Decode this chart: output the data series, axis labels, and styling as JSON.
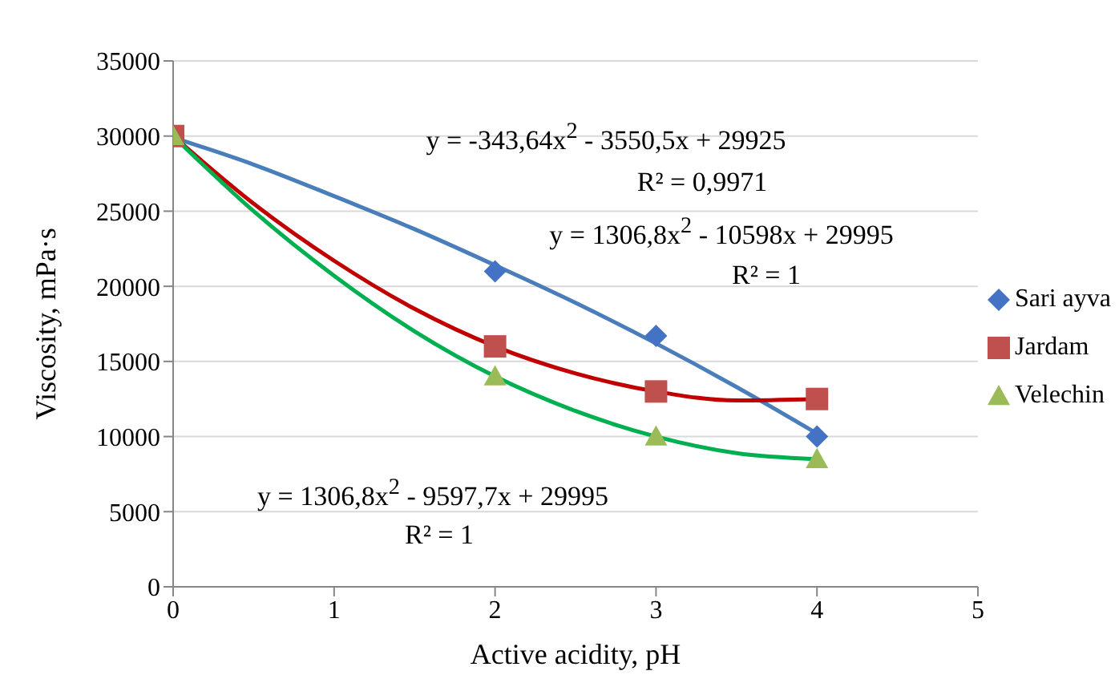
{
  "chart_data": {
    "type": "scatter",
    "xlabel": "Active acidity, pH",
    "ylabel": "Viscosity, mPa·s",
    "xlim": [
      0,
      5
    ],
    "xticks": [
      0,
      1,
      2,
      3,
      4,
      5
    ],
    "ylim": [
      0,
      35000
    ],
    "yticks": [
      0,
      5000,
      10000,
      15000,
      20000,
      25000,
      30000,
      35000
    ],
    "grid": "y",
    "legend": "right",
    "series": [
      {
        "name": "Sari ayva",
        "color": "#4472c4",
        "marker": "diamond",
        "x": [
          2,
          3,
          4
        ],
        "values": [
          21000,
          16700,
          10000
        ]
      },
      {
        "name": "Jardam",
        "color": "#c0504d",
        "marker": "square",
        "x": [
          0,
          2,
          3,
          4
        ],
        "values": [
          30000,
          16000,
          13000,
          12500
        ]
      },
      {
        "name": "Velechin",
        "color": "#9bbb59",
        "marker": "triangle",
        "x": [
          0,
          2,
          3,
          4
        ],
        "values": [
          30000,
          14000,
          10000,
          8500
        ]
      },
      {
        "type": "line",
        "color": "#4a7ebb",
        "marker": "none",
        "x": [
          0,
          0.5,
          1,
          1.5,
          2,
          2.5,
          3,
          3.5,
          4
        ],
        "values": [
          29900,
          28100,
          26000,
          23800,
          21400,
          18900,
          16200,
          13300,
          10200
        ]
      },
      {
        "type": "line",
        "color": "#c00000",
        "marker": "none",
        "x": [
          0,
          0.5,
          1,
          1.5,
          2,
          2.5,
          3,
          3.5,
          4
        ],
        "values": [
          30000,
          25500,
          21700,
          18500,
          16000,
          14200,
          13000,
          12400,
          12500
        ]
      },
      {
        "type": "line",
        "color": "#00b050",
        "marker": "none",
        "x": [
          0,
          0.5,
          1,
          1.5,
          2,
          2.5,
          3,
          3.5,
          4
        ],
        "values": [
          30000,
          25000,
          20700,
          17000,
          14000,
          11700,
          10000,
          8900,
          8500
        ]
      }
    ],
    "annotations": [
      "y = -343,64x$^{2}$ - 3550,5x + 29925",
      "R² = 0,9971",
      "y = 1306,8x$^{2}$ - 10598x + 29995",
      "R² = 1",
      "y = 1306,8x$^{2}$ - 9597,7x + 29995",
      "R² = 1"
    ]
  }
}
